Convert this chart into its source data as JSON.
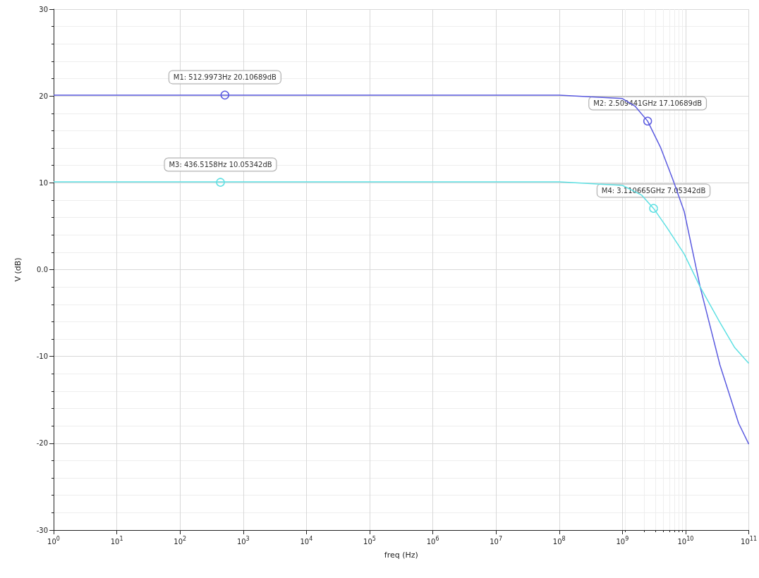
{
  "chart_data": {
    "type": "line",
    "xlabel": "freq (Hz)",
    "ylabel": "V (dB)",
    "log": "x",
    "grid": true,
    "xlim": [
      1,
      100000000000.0
    ],
    "ylim": [
      -30,
      30
    ],
    "xticks": [
      {
        "value": 1,
        "label": "10$^{0}$"
      },
      {
        "value": 10,
        "label": "10$^{1}$"
      },
      {
        "value": 100,
        "label": "10$^{2}$"
      },
      {
        "value": 1000,
        "label": "10$^{3}$"
      },
      {
        "value": 10000.0,
        "label": "10$^{4}$"
      },
      {
        "value": 100000.0,
        "label": "10$^{5}$"
      },
      {
        "value": 1000000.0,
        "label": "10$^{6}$"
      },
      {
        "value": 10000000.0,
        "label": "10$^{7}$"
      },
      {
        "value": 100000000.0,
        "label": "10$^{8}$"
      },
      {
        "value": 1000000000.0,
        "label": "10$^{9}$"
      },
      {
        "value": 10000000000.0,
        "label": "10$^{10}$"
      },
      {
        "value": 100000000000.0,
        "label": "10$^{11}$"
      }
    ],
    "yticks": [
      -30,
      -20,
      -10,
      {
        "value": 0,
        "label": "0.0"
      },
      10,
      20,
      30
    ],
    "series": [
      {
        "color": "#5b5be0",
        "x": [
          1,
          100000000.0,
          1000000000.0,
          1600000000.0,
          2509441000.0,
          4000000000.0,
          6200000000.0,
          9500000000.0,
          17000000000.0,
          35000000000.0,
          69000000000.0,
          100000000000.0
        ],
        "values": [
          20.1,
          20.1,
          19.7,
          18.8,
          17.1,
          14.1,
          10.5,
          6.7,
          -2.0,
          -11.0,
          -17.7,
          -20.1
        ]
      },
      {
        "color": "#5ee0e3",
        "x": [
          1,
          100000000.0,
          1000000000.0,
          2000000000.0,
          3110665000.0,
          5000000000.0,
          9500000000.0,
          17000000000.0,
          35000000000.0,
          60000000000.0,
          100000000000.0
        ],
        "values": [
          10.1,
          10.1,
          9.7,
          8.6,
          7.05,
          4.9,
          1.8,
          -2.0,
          -6.1,
          -9.0,
          -10.8
        ]
      }
    ],
    "annotations": [
      {
        "text": "M1: 512.9973Hz 20.10689dB",
        "x": 512.9973,
        "y": 20.10689
      },
      {
        "text": "M2: 2.509441GHz 17.10689dB",
        "x": 2509441000.0,
        "y": 17.10689
      },
      {
        "text": "M3: 436.5158Hz 10.05342dB",
        "x": 436.5158,
        "y": 10.05342
      },
      {
        "text": "M4: 3.110665GHz 7.05342dB",
        "x": 3110665000.0,
        "y": 7.05342
      }
    ]
  }
}
